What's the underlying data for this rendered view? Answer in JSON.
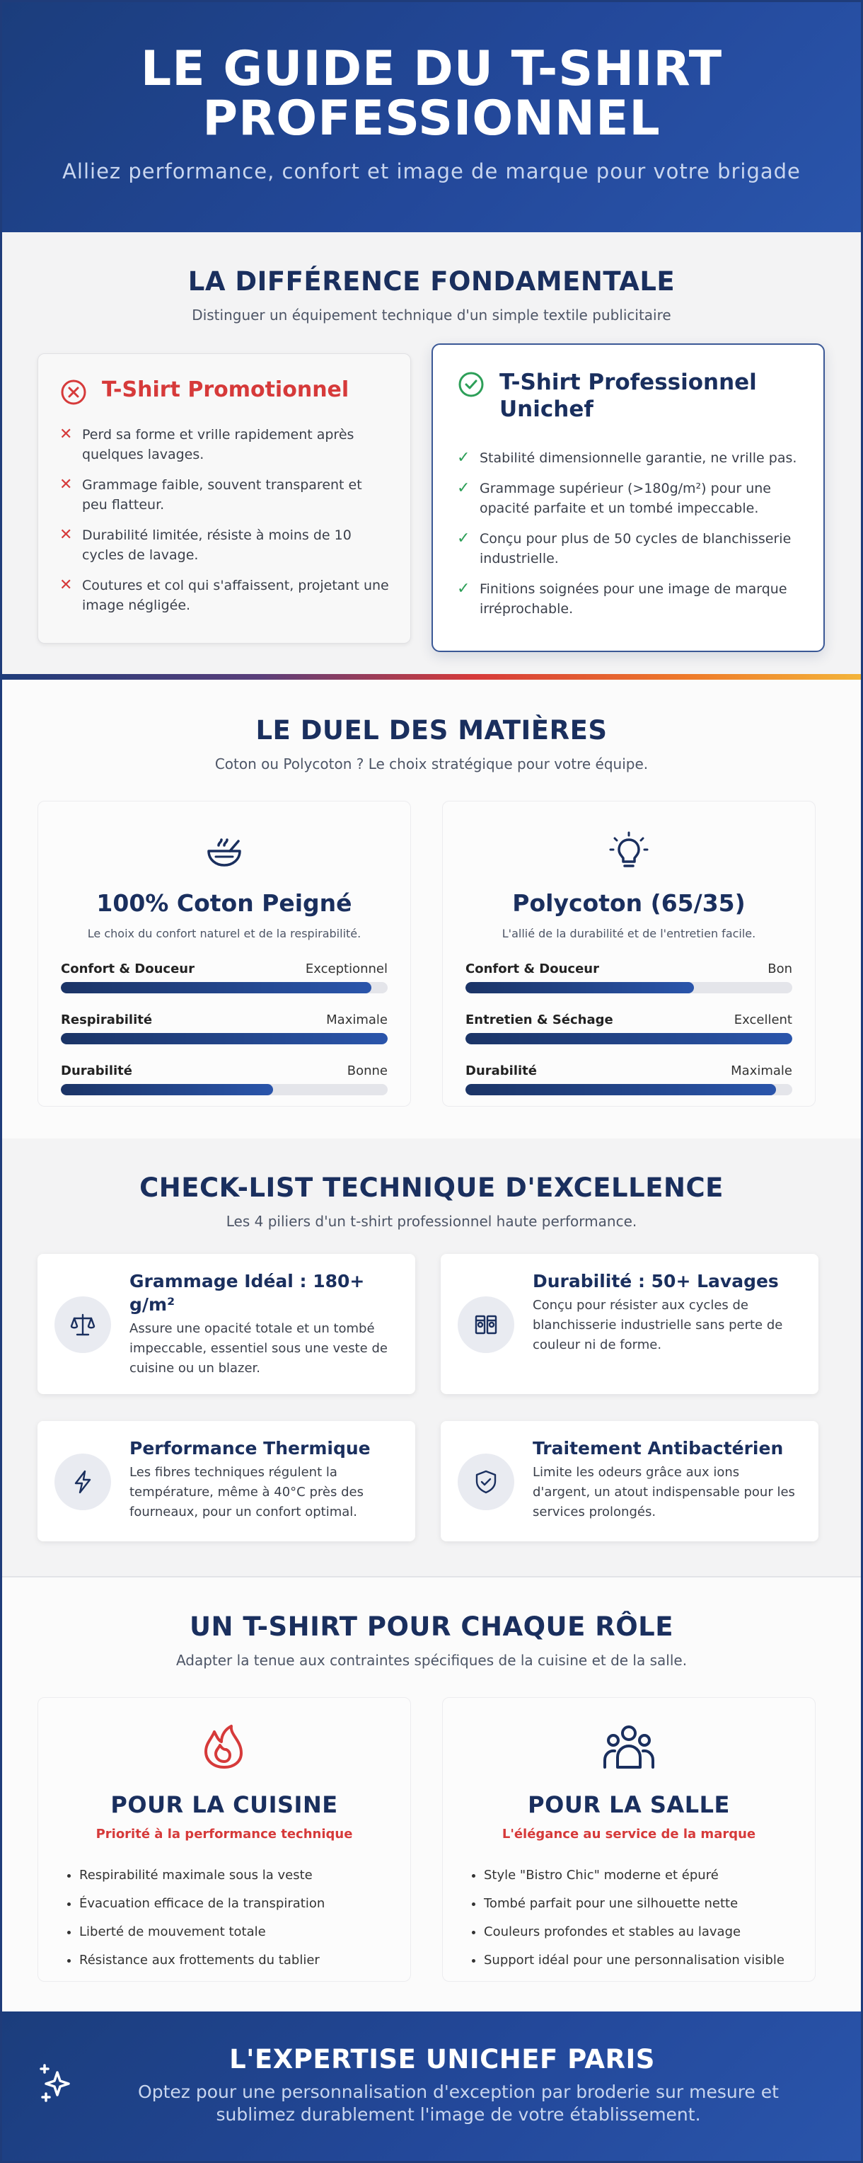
{
  "hero": {
    "title_line1": "LE GUIDE DU T-SHIRT",
    "title_line2": "PROFESSIONNEL",
    "subtitle": "Alliez performance, confort et image de marque pour votre brigade"
  },
  "difference": {
    "title": "LA DIFFÉRENCE FONDAMENTALE",
    "subtitle": "Distinguer un équipement technique d'un simple textile publicitaire",
    "promo": {
      "icon": "x-circle-icon",
      "title": "T-Shirt Promotionnel",
      "color": "#d63a3a",
      "items": [
        "Perd sa forme et vrille rapidement après quelques lavages.",
        "Grammage faible, souvent transparent et peu flatteur.",
        "Durabilité limitée, résiste à moins de 10 cycles de lavage.",
        "Coutures et col qui s'affaissent, projetant une image négligée."
      ]
    },
    "pro": {
      "icon": "check-circle-icon",
      "title": "T-Shirt Professionnel Unichef",
      "color": "#2d9f58",
      "items": [
        "Stabilité dimensionnelle garantie, ne vrille pas.",
        "Grammage supérieur (>180g/m²) pour une opacité parfaite et un tombé impeccable.",
        "Conçu pour plus de 50 cycles de blanchisserie industrielle.",
        "Finitions soignées pour une image de marque irréprochable."
      ]
    }
  },
  "duel": {
    "title": "LE DUEL DES MATIÈRES",
    "subtitle": "Coton ou Polycoton ? Le choix stratégique pour votre équipe.",
    "materials": [
      {
        "icon": "bowl-icon",
        "name": "100% Coton Peigné",
        "tagline": "Le choix du confort naturel et de la respirabilité.",
        "bars": [
          {
            "label": "Confort & Douceur",
            "value": "Exceptionnel",
            "level": 0.95
          },
          {
            "label": "Respirabilité",
            "value": "Maximale",
            "level": 1.0
          },
          {
            "label": "Durabilité",
            "value": "Bonne",
            "level": 0.65
          }
        ]
      },
      {
        "icon": "lightbulb-icon",
        "name": "Polycoton (65/35)",
        "tagline": "L'allié de la durabilité et de l'entretien facile.",
        "bars": [
          {
            "label": "Confort & Douceur",
            "value": "Bon",
            "level": 0.7
          },
          {
            "label": "Entretien & Séchage",
            "value": "Excellent",
            "level": 1.0
          },
          {
            "label": "Durabilité",
            "value": "Maximale",
            "level": 0.95
          }
        ]
      }
    ]
  },
  "checklist": {
    "title": "CHECK-LIST TECHNIQUE D'EXCELLENCE",
    "subtitle": "Les 4 piliers d'un t-shirt professionnel haute performance.",
    "items": [
      {
        "icon": "scale-icon",
        "title": "Grammage Idéal : 180+ g/m²",
        "text": "Assure une opacité totale et un tombé impeccable, essentiel sous une veste de cuisine ou un blazer."
      },
      {
        "icon": "washing-machine-icon",
        "title": "Durabilité : 50+ Lavages",
        "text": "Conçu pour résister aux cycles de blanchisserie industrielle sans perte de couleur ni de forme."
      },
      {
        "icon": "bolt-icon",
        "title": "Performance Thermique",
        "text": "Les fibres techniques régulent la température, même à 40°C près des fourneaux, pour un confort optimal."
      },
      {
        "icon": "shield-check-icon",
        "title": "Traitement Antibactérien",
        "text": "Limite les odeurs grâce aux ions d'argent, un atout indispensable pour les services prolongés."
      }
    ]
  },
  "roles": {
    "title": "UN T-SHIRT POUR CHAQUE RÔLE",
    "subtitle": "Adapter la tenue aux contraintes spécifiques de la cuisine et de la salle.",
    "cards": [
      {
        "icon": "flame-icon",
        "title": "POUR LA CUISINE",
        "priority": "Priorité à la performance technique",
        "items": [
          "Respirabilité maximale sous la veste",
          "Évacuation efficace de la transpiration",
          "Liberté de mouvement totale",
          "Résistance aux frottements du tablier"
        ]
      },
      {
        "icon": "users-icon",
        "title": "POUR LA SALLE",
        "priority": "L'élégance au service de la marque",
        "items": [
          "Style \"Bistro Chic\" moderne et épuré",
          "Tombé parfait pour une silhouette nette",
          "Couleurs profondes et stables au lavage",
          "Support idéal pour une personnalisation visible"
        ]
      }
    ]
  },
  "footer": {
    "icon": "sparkles-icon",
    "title": "L'EXPERTISE UNICHEF PARIS",
    "text": "Optez pour une personnalisation d'exception par broderie sur mesure et sublimez durablement l'image de votre établissement."
  },
  "colors": {
    "navy": "#1a2f5e",
    "blue": "#23489a",
    "red": "#d63a3a",
    "green": "#2d9f58"
  }
}
